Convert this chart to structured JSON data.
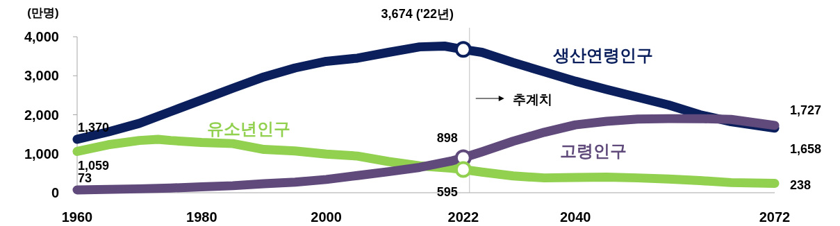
{
  "chart_data": {
    "type": "line",
    "ylabel": "(만명)",
    "xlim": [
      1960,
      2072
    ],
    "xticks": [
      1960,
      1980,
      2000,
      2022,
      2040,
      2072
    ],
    "ylim": [
      0,
      4000
    ],
    "yticks": [
      {
        "value": 0,
        "label": "0"
      },
      {
        "value": 1000,
        "label": "1,000"
      },
      {
        "value": 2000,
        "label": "2,000"
      },
      {
        "value": 3000,
        "label": "3,000"
      },
      {
        "value": 4000,
        "label": "4,000"
      }
    ],
    "grid": false,
    "legend": false,
    "line_style": "solid",
    "series": [
      {
        "name": "생산연령인구",
        "color": "#0a1f5c",
        "x": [
          1960,
          1965,
          1970,
          1975,
          1980,
          1985,
          1990,
          1995,
          2000,
          2005,
          2010,
          2015,
          2019,
          2022,
          2025,
          2030,
          2035,
          2040,
          2045,
          2050,
          2055,
          2060,
          2065,
          2072
        ],
        "values": [
          1370,
          1560,
          1780,
          2080,
          2380,
          2680,
          2970,
          3200,
          3370,
          3450,
          3600,
          3740,
          3760,
          3674,
          3600,
          3340,
          3100,
          2860,
          2650,
          2450,
          2250,
          2000,
          1820,
          1658
        ]
      },
      {
        "name": "유소년인구",
        "color": "#92d050",
        "x": [
          1960,
          1965,
          1970,
          1973,
          1975,
          1980,
          1985,
          1990,
          1995,
          2000,
          2005,
          2010,
          2015,
          2020,
          2022,
          2025,
          2030,
          2035,
          2040,
          2045,
          2050,
          2055,
          2060,
          2065,
          2072
        ],
        "values": [
          1059,
          1230,
          1340,
          1370,
          1340,
          1290,
          1260,
          1110,
          1070,
          990,
          940,
          800,
          690,
          630,
          595,
          530,
          430,
          380,
          390,
          400,
          380,
          350,
          310,
          260,
          238
        ]
      },
      {
        "name": "고령인구",
        "color": "#604a7b",
        "x": [
          1960,
          1970,
          1975,
          1980,
          1985,
          1990,
          1995,
          2000,
          2005,
          2010,
          2015,
          2020,
          2022,
          2025,
          2030,
          2035,
          2040,
          2045,
          2050,
          2055,
          2060,
          2065,
          2072
        ],
        "values": [
          73,
          100,
          120,
          150,
          180,
          230,
          270,
          340,
          440,
          540,
          650,
          810,
          898,
          1050,
          1320,
          1550,
          1740,
          1830,
          1890,
          1900,
          1900,
          1880,
          1727
        ]
      }
    ],
    "ref_lines": [
      {
        "axis": "x",
        "value": 2023,
        "label": "추계치",
        "color": "#bfbfbf"
      }
    ],
    "annotations": [
      {
        "text": "3,674 ('22년)",
        "x": 2022,
        "y": 3674
      },
      {
        "text": "1,370",
        "x": 1960,
        "y": 1370
      },
      {
        "text": "1,059",
        "x": 1960,
        "y": 1059
      },
      {
        "text": "73",
        "x": 1960,
        "y": 73
      },
      {
        "text": "898",
        "x": 2022,
        "y": 898
      },
      {
        "text": "595",
        "x": 2022,
        "y": 595
      },
      {
        "text": "1,727",
        "x": 2072,
        "y": 1727
      },
      {
        "text": "1,658",
        "x": 2072,
        "y": 1658
      },
      {
        "text": "238",
        "x": 2072,
        "y": 238
      }
    ]
  }
}
